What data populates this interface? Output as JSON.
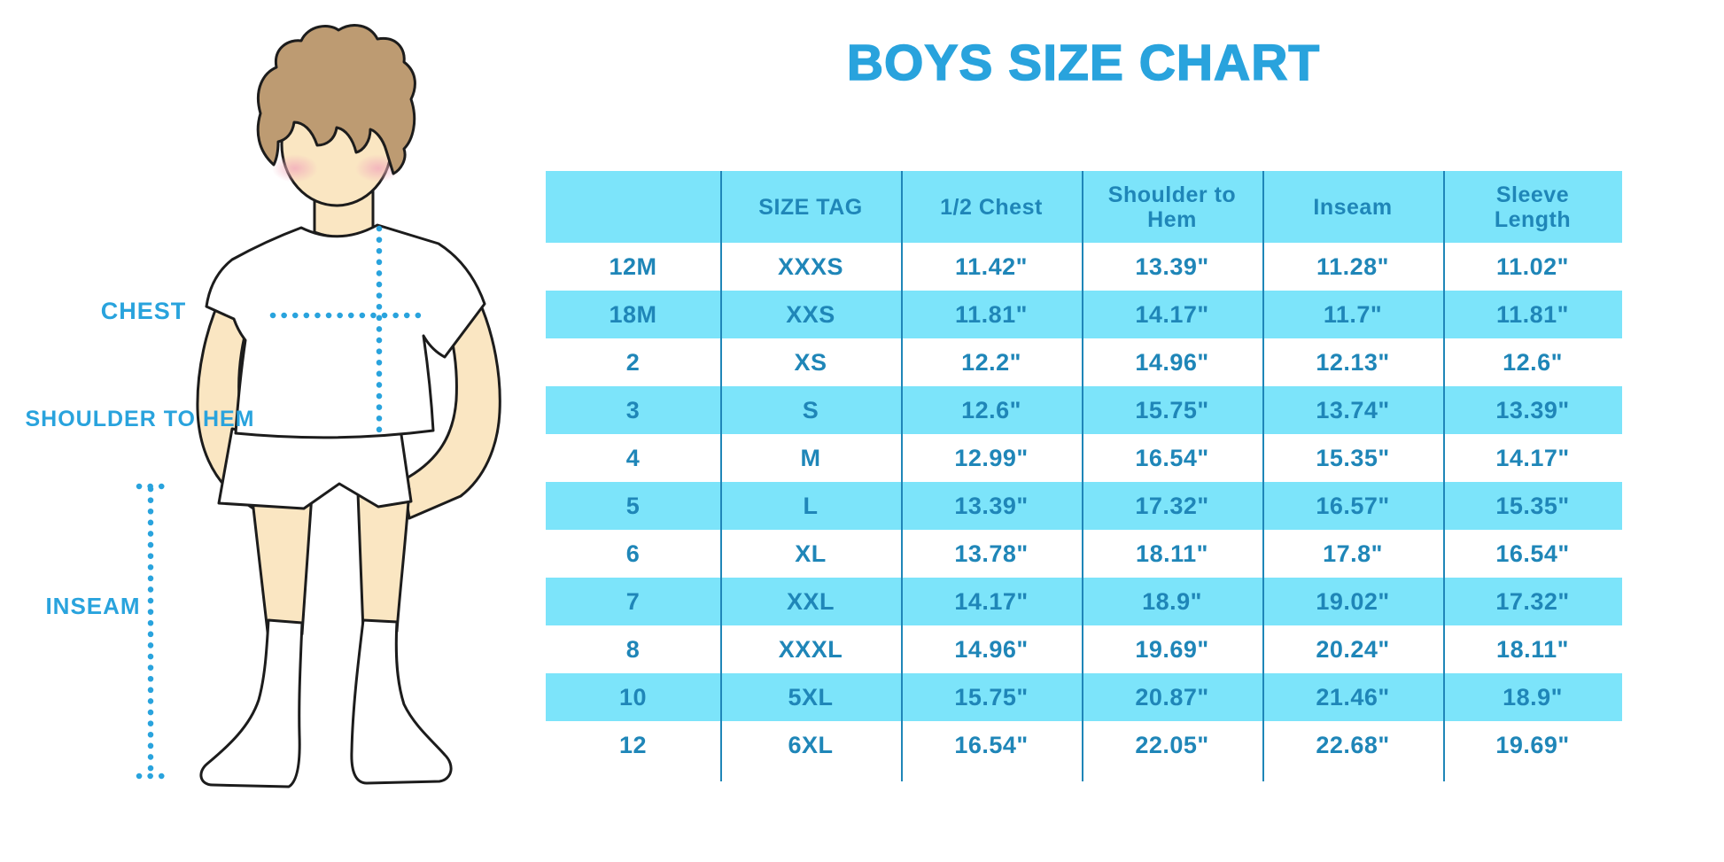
{
  "title": "BOYS SIZE CHART",
  "illustration": {
    "chest_label": "CHEST",
    "shoulder_to_hem_label": "SHOULDER TO HEM",
    "inseam_label": "INSEAM",
    "figure": "cartoon boy in white t-shirt, white shorts and white socks with dotted measurement guides"
  },
  "chart_data": {
    "type": "table",
    "title": "BOYS SIZE CHART",
    "columns": [
      "",
      "SIZE TAG",
      "1/2 Chest",
      "Shoulder to Hem",
      "Inseam",
      "Sleeve Length"
    ],
    "rows": [
      [
        "12M",
        "XXXS",
        "11.42\"",
        "13.39\"",
        "11.28\"",
        "11.02\""
      ],
      [
        "18M",
        "XXS",
        "11.81\"",
        "14.17\"",
        "11.7\"",
        "11.81\""
      ],
      [
        "2",
        "XS",
        "12.2\"",
        "14.96\"",
        "12.13\"",
        "12.6\""
      ],
      [
        "3",
        "S",
        "12.6\"",
        "15.75\"",
        "13.74\"",
        "13.39\""
      ],
      [
        "4",
        "M",
        "12.99\"",
        "16.54\"",
        "15.35\"",
        "14.17\""
      ],
      [
        "5",
        "L",
        "13.39\"",
        "17.32\"",
        "16.57\"",
        "15.35\""
      ],
      [
        "6",
        "XL",
        "13.78\"",
        "18.11\"",
        "17.8\"",
        "16.54\""
      ],
      [
        "7",
        "XXL",
        "14.17\"",
        "18.9\"",
        "19.02\"",
        "17.32\""
      ],
      [
        "8",
        "XXXL",
        "14.96\"",
        "19.69\"",
        "20.24\"",
        "18.11\""
      ],
      [
        "10",
        "5XL",
        "15.75\"",
        "20.87\"",
        "21.46\"",
        "18.9\""
      ],
      [
        "12",
        "6XL",
        "16.54\"",
        "22.05\"",
        "22.68\"",
        "19.69\""
      ]
    ],
    "layout": {
      "alternating_row_colors": true,
      "column_dividers": true,
      "grid": "off"
    }
  },
  "colors": {
    "accent_blue": "#29a3dd",
    "table_header_bg": "#7ce4fa",
    "table_alt_row_bg": "#7ce4fa",
    "table_text": "#1f86b8",
    "divider_line": "#1f86b8",
    "dotted_measure_line": "#29a3dd",
    "skin": "#fae6c2",
    "hair": "#bd9b72",
    "blush": "#f2aebc",
    "outline": "#1c1c1c"
  }
}
